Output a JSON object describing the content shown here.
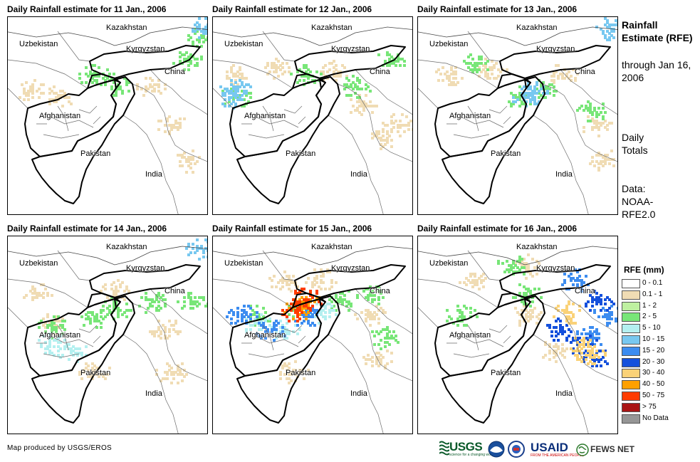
{
  "panels": [
    {
      "title": "Daily Rainfall estimate for 11 Jan., 2006",
      "rain": [
        {
          "v": "0.1 - 1",
          "c": [
            [
              30,
              100
            ],
            [
              70,
              110
            ],
            [
              200,
              95
            ],
            [
              230,
              150
            ],
            [
              250,
              200
            ]
          ]
        },
        {
          "v": "2 - 5",
          "c": [
            [
              120,
              80
            ],
            [
              150,
              95
            ],
            [
              250,
              60
            ],
            [
              270,
              25
            ]
          ]
        },
        {
          "v": "10 - 15",
          "c": [
            [
              272,
              15
            ]
          ]
        }
      ]
    },
    {
      "title": "Daily Rainfall estimate for 12 Jan., 2006",
      "rain": [
        {
          "v": "0.1 - 1",
          "c": [
            [
              30,
              80
            ],
            [
              90,
              70
            ],
            [
              170,
              75
            ],
            [
              210,
              120
            ],
            [
              240,
              170
            ],
            [
              260,
              150
            ]
          ]
        },
        {
          "v": "2 - 5",
          "c": [
            [
              30,
              110
            ],
            [
              130,
              80
            ],
            [
              200,
              95
            ],
            [
              250,
              60
            ]
          ]
        },
        {
          "v": "10 - 15",
          "c": [
            [
              25,
              110
            ],
            [
              30,
              100
            ]
          ]
        }
      ]
    },
    {
      "title": "Daily Rainfall estimate for 13 Jan., 2006",
      "rain": [
        {
          "v": "0.1 - 1",
          "c": [
            [
              40,
              80
            ],
            [
              100,
              70
            ],
            [
              200,
              80
            ],
            [
              250,
              150
            ],
            [
              260,
              200
            ]
          ]
        },
        {
          "v": "2 - 5",
          "c": [
            [
              80,
              65
            ],
            [
              140,
              110
            ],
            [
              180,
              100
            ],
            [
              240,
              130
            ]
          ]
        },
        {
          "v": "10 - 15",
          "c": [
            [
              150,
              110
            ],
            [
              160,
              105
            ],
            [
              270,
              15
            ]
          ]
        }
      ]
    },
    {
      "title": "Daily Rainfall estimate for 14 Jan., 2006",
      "rain": [
        {
          "v": "0.1 - 1",
          "c": [
            [
              40,
              80
            ],
            [
              60,
              120
            ],
            [
              150,
              75
            ],
            [
              220,
              130
            ],
            [
              230,
              190
            ],
            [
              120,
              190
            ]
          ]
        },
        {
          "v": "2 - 5",
          "c": [
            [
              60,
              125
            ],
            [
              120,
              115
            ],
            [
              150,
              100
            ],
            [
              200,
              90
            ],
            [
              260,
              90
            ]
          ]
        },
        {
          "v": "5 - 10",
          "c": [
            [
              60,
              150
            ],
            [
              90,
              160
            ]
          ]
        },
        {
          "v": "10 - 15",
          "c": [
            [
              270,
              15
            ]
          ]
        }
      ]
    },
    {
      "title": "Daily Rainfall estimate for 15 Jan., 2006",
      "rain": [
        {
          "v": "0.1 - 1",
          "c": [
            [
              100,
              60
            ],
            [
              150,
              60
            ],
            [
              220,
              110
            ],
            [
              230,
              170
            ],
            [
              110,
              190
            ]
          ]
        },
        {
          "v": "2 - 5",
          "c": [
            [
              60,
              110
            ],
            [
              120,
              100
            ],
            [
              180,
              90
            ],
            [
              220,
              80
            ],
            [
              240,
              140
            ]
          ]
        },
        {
          "v": "5 - 10",
          "c": [
            [
              60,
              120
            ],
            [
              100,
              130
            ],
            [
              150,
              105
            ]
          ]
        },
        {
          "v": "15 - 20",
          "c": [
            [
              40,
              110
            ],
            [
              80,
              130
            ],
            [
              130,
              110
            ]
          ]
        },
        {
          "v": "40 - 50",
          "c": [
            [
              120,
              100
            ],
            [
              128,
              93
            ]
          ]
        },
        {
          "v": "50 - 75",
          "c": [
            [
              115,
              103
            ],
            [
              132,
              86
            ]
          ]
        }
      ]
    },
    {
      "title": "Daily Rainfall estimate for 16 Jan., 2006",
      "rain": [
        {
          "v": "0.1 - 1",
          "c": [
            [
              80,
              60
            ],
            [
              150,
              40
            ],
            [
              150,
              110
            ],
            [
              190,
              160
            ]
          ]
        },
        {
          "v": "2 - 5",
          "c": [
            [
              60,
              110
            ],
            [
              150,
              80
            ],
            [
              130,
              40
            ]
          ]
        },
        {
          "v": "15 - 20",
          "c": [
            [
              220,
              60
            ],
            [
              240,
              140
            ],
            [
              265,
              110
            ]
          ]
        },
        {
          "v": "20 - 30",
          "c": [
            [
              200,
              130
            ],
            [
              230,
              150
            ],
            [
              250,
              170
            ],
            [
              255,
              90
            ]
          ]
        },
        {
          "v": "30 - 40",
          "c": [
            [
              210,
              105
            ],
            [
              230,
              150
            ],
            [
              240,
              165
            ]
          ]
        }
      ]
    }
  ],
  "map_labels": {
    "kazakhstan": "Kazakhstan",
    "uzbekistan": "Uzbekistan",
    "kyrgyzstan": "Kyrgyzstan",
    "china": "China",
    "afghanistan": "Afghanistan",
    "pakistan": "Pakistan",
    "india": "India"
  },
  "sidebar": {
    "title": "Rainfall Estimate (RFE)",
    "subtitle": "through Jan 16, 2006",
    "totals": "Daily Totals",
    "data": "Data: NOAA-RFE2.0"
  },
  "legend": {
    "title": "RFE (mm)",
    "items": [
      {
        "label": "0 - 0.1",
        "color": "#ffffff"
      },
      {
        "label": "0.1 - 1",
        "color": "#f0dcb4"
      },
      {
        "label": "1 - 2",
        "color": "#bef0a0"
      },
      {
        "label": "2 - 5",
        "color": "#78e678"
      },
      {
        "label": "5 - 10",
        "color": "#b4f0f0"
      },
      {
        "label": "10 - 15",
        "color": "#78c8f0"
      },
      {
        "label": "15 - 20",
        "color": "#3c8cf0"
      },
      {
        "label": "20 - 30",
        "color": "#1450dc"
      },
      {
        "label": "30 - 40",
        "color": "#fad278"
      },
      {
        "label": "40 - 50",
        "color": "#ffa000"
      },
      {
        "label": "50 - 75",
        "color": "#ff3c00"
      },
      {
        "label": "> 75",
        "color": "#aa1414"
      },
      {
        "label": "No Data",
        "color": "#969696"
      }
    ]
  },
  "credit": "Map produced by USGS/EROS",
  "logos": {
    "usgs": "USGS",
    "usgs_tagline": "science for a changing world",
    "usaid": "USAID",
    "usaid_tagline": "FROM THE AMERICAN PEOPLE",
    "fews": "FEWS NET"
  }
}
